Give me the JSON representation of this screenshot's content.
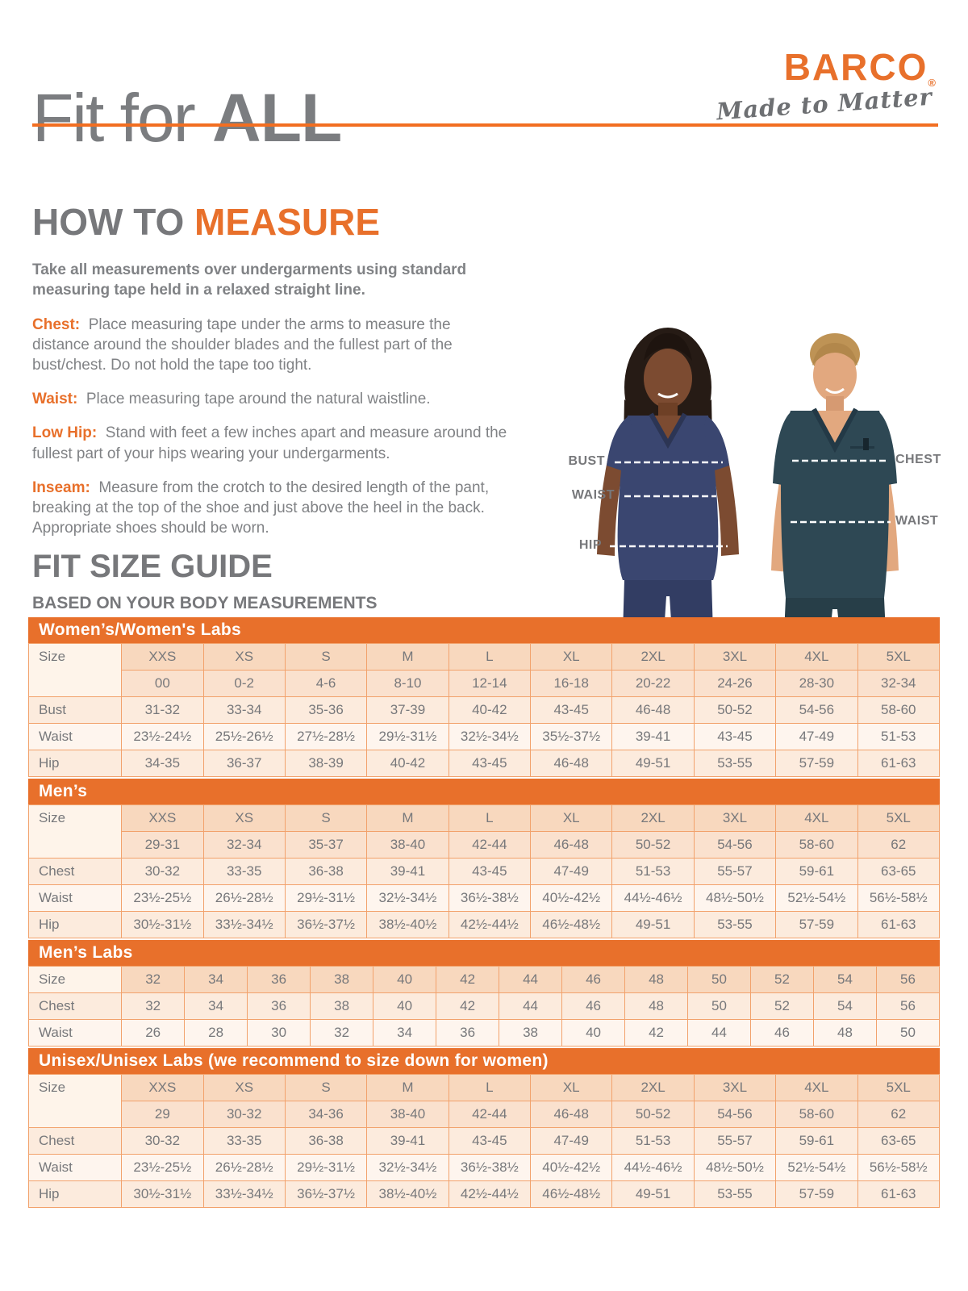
{
  "header": {
    "title_regular": "Fit for",
    "title_bold": "ALL"
  },
  "logo": {
    "name": "BARCO",
    "registered": "®",
    "tagline": "Made to Matter"
  },
  "how_to_measure": {
    "heading_gray": "HOW TO",
    "heading_accent": "MEASURE",
    "intro": "Take all measurements over undergarments using standard measuring tape held in a relaxed straight line.",
    "items": [
      {
        "label": "Chest:",
        "text": "Place measuring tape under the arms to measure the distance around the shoulder blades and the fullest part of the bust/chest. Do not hold the tape too tight."
      },
      {
        "label": "Waist:",
        "text": "Place measuring tape around the natural waistline."
      },
      {
        "label": "Low Hip:",
        "text": "Stand with feet a few inches apart and measure around the fullest part of your hips wearing your undergarments."
      },
      {
        "label": "Inseam:",
        "text": "Measure from the crotch to the desired length of the pant, breaking at the top of the shoe and just above the heel in the back. Appropriate shoes should be worn."
      }
    ]
  },
  "models": {
    "female_labels": {
      "bust": "BUST",
      "waist": "WAIST",
      "hip": "HIP"
    },
    "male_labels": {
      "chest": "CHEST",
      "waist": "WAIST"
    }
  },
  "size_guide": {
    "title": "FIT SIZE GUIDE",
    "subtitle": "BASED ON YOUR BODY MEASUREMENTS",
    "size_label": "Size",
    "tables": [
      {
        "title": "Women’s/Women's Labs",
        "sizes": [
          "XXS",
          "XS",
          "S",
          "M",
          "L",
          "XL",
          "2XL",
          "3XL",
          "4XL",
          "5XL"
        ],
        "numeric_row": [
          "00",
          "0-2",
          "4-6",
          "8-10",
          "12-14",
          "16-18",
          "20-22",
          "24-26",
          "28-30",
          "32-34"
        ],
        "rows": [
          {
            "label": "Bust",
            "values": [
              "31-32",
              "33-34",
              "35-36",
              "37-39",
              "40-42",
              "43-45",
              "46-48",
              "50-52",
              "54-56",
              "58-60"
            ]
          },
          {
            "label": "Waist",
            "values": [
              "23½-24½",
              "25½-26½",
              "27½-28½",
              "29½-31½",
              "32½-34½",
              "35½-37½",
              "39-41",
              "43-45",
              "47-49",
              "51-53"
            ]
          },
          {
            "label": "Hip",
            "values": [
              "34-35",
              "36-37",
              "38-39",
              "40-42",
              "43-45",
              "46-48",
              "49-51",
              "53-55",
              "57-59",
              "61-63"
            ]
          }
        ]
      },
      {
        "title": "Men’s",
        "sizes": [
          "XXS",
          "XS",
          "S",
          "M",
          "L",
          "XL",
          "2XL",
          "3XL",
          "4XL",
          "5XL"
        ],
        "numeric_row": [
          "29-31",
          "32-34",
          "35-37",
          "38-40",
          "42-44",
          "46-48",
          "50-52",
          "54-56",
          "58-60",
          "62"
        ],
        "rows": [
          {
            "label": "Chest",
            "values": [
              "30-32",
              "33-35",
              "36-38",
              "39-41",
              "43-45",
              "47-49",
              "51-53",
              "55-57",
              "59-61",
              "63-65"
            ]
          },
          {
            "label": "Waist",
            "values": [
              "23½-25½",
              "26½-28½",
              "29½-31½",
              "32½-34½",
              "36½-38½",
              "40½-42½",
              "44½-46½",
              "48½-50½",
              "52½-54½",
              "56½-58½"
            ]
          },
          {
            "label": "Hip",
            "values": [
              "30½-31½",
              "33½-34½",
              "36½-37½",
              "38½-40½",
              "42½-44½",
              "46½-48½",
              "49-51",
              "53-55",
              "57-59",
              "61-63"
            ]
          }
        ]
      },
      {
        "title": "Men’s Labs",
        "sizes": [
          "32",
          "34",
          "36",
          "38",
          "40",
          "42",
          "44",
          "46",
          "48",
          "50",
          "52",
          "54",
          "56"
        ],
        "numeric_row": null,
        "rows": [
          {
            "label": "Chest",
            "values": [
              "32",
              "34",
              "36",
              "38",
              "40",
              "42",
              "44",
              "46",
              "48",
              "50",
              "52",
              "54",
              "56"
            ]
          },
          {
            "label": "Waist",
            "values": [
              "26",
              "28",
              "30",
              "32",
              "34",
              "36",
              "38",
              "40",
              "42",
              "44",
              "46",
              "48",
              "50"
            ]
          }
        ]
      },
      {
        "title": "Unisex/Unisex Labs (we recommend to size down for women)",
        "sizes": [
          "XXS",
          "XS",
          "S",
          "M",
          "L",
          "XL",
          "2XL",
          "3XL",
          "4XL",
          "5XL"
        ],
        "numeric_row": [
          "29",
          "30-32",
          "34-36",
          "38-40",
          "42-44",
          "46-48",
          "50-52",
          "54-56",
          "58-60",
          "62"
        ],
        "rows": [
          {
            "label": "Chest",
            "values": [
              "30-32",
              "33-35",
              "36-38",
              "39-41",
              "43-45",
              "47-49",
              "51-53",
              "55-57",
              "59-61",
              "63-65"
            ]
          },
          {
            "label": "Waist",
            "values": [
              "23½-25½",
              "26½-28½",
              "29½-31½",
              "32½-34½",
              "36½-38½",
              "40½-42½",
              "44½-46½",
              "48½-50½",
              "52½-54½",
              "56½-58½"
            ]
          },
          {
            "label": "Hip",
            "values": [
              "30½-31½",
              "33½-34½",
              "36½-37½",
              "38½-40½",
              "42½-44½",
              "46½-48½",
              "49-51",
              "53-55",
              "57-59",
              "61-63"
            ]
          }
        ]
      }
    ]
  },
  "colors": {
    "accent_orange": "#E8702B",
    "rule_orange": "#F26E21",
    "heading_gray": "#77787B",
    "body_gray": "#808285",
    "table_border": "#F2A26C",
    "size_header_bg": "#F8D8BE",
    "row_dark_bg": "#FCEBDD",
    "row_light_bg": "#FEF5EE",
    "female_scrub_navy": "#3A4670",
    "male_scrub_teal": "#2E4854"
  }
}
